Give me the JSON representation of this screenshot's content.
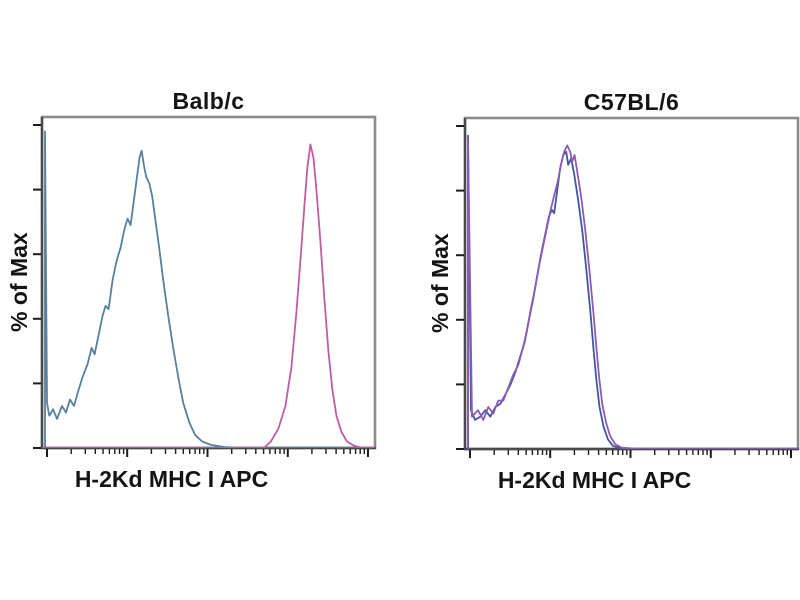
{
  "figure": {
    "background": "#ffffff",
    "frame_color": "#8c8c8c",
    "axis_color": "#4a4a4a",
    "tick_color": "#1c1c1c",
    "text_color": "#141414"
  },
  "chart_data": [
    {
      "type": "line",
      "subtype": "flow-cytometry-histogram-overlay",
      "title": "Balb/c",
      "xlabel": "H-2Kd MHC I APC",
      "ylabel": "% of Max",
      "grid": false,
      "legend": false,
      "x_axis": {
        "scale": "log",
        "decades": 4,
        "decade_fracs": [
          1.5,
          25.6,
          49.7,
          73.8,
          97.9
        ],
        "tick_labels_visible": false,
        "x_units": "fraction-of-axis-0-100"
      },
      "y_axis": {
        "lim": [
          0,
          100
        ],
        "ticks": [
          0,
          20,
          40,
          60,
          80,
          100
        ],
        "tick_labels_visible": false
      },
      "series": [
        {
          "name": "blue-curve",
          "color": "#57809f",
          "points": [
            [
              0.9,
              0
            ],
            [
              0.9,
              98
            ],
            [
              1.5,
              14
            ],
            [
              2.2,
              10
            ],
            [
              3.3,
              12
            ],
            [
              4.5,
              9
            ],
            [
              6.0,
              13
            ],
            [
              7.2,
              11
            ],
            [
              8.4,
              15
            ],
            [
              9.6,
              13
            ],
            [
              10.7,
              17
            ],
            [
              12.2,
              22
            ],
            [
              13.7,
              26
            ],
            [
              14.9,
              31
            ],
            [
              15.8,
              29
            ],
            [
              17.0,
              35
            ],
            [
              18.2,
              41
            ],
            [
              19.1,
              44
            ],
            [
              20.0,
              43
            ],
            [
              21.2,
              52
            ],
            [
              22.4,
              58
            ],
            [
              23.6,
              62
            ],
            [
              24.8,
              68
            ],
            [
              25.7,
              71
            ],
            [
              26.6,
              69
            ],
            [
              27.5,
              76
            ],
            [
              28.4,
              83
            ],
            [
              29.3,
              90
            ],
            [
              29.9,
              92
            ],
            [
              30.7,
              87
            ],
            [
              31.3,
              84
            ],
            [
              32.2,
              82
            ],
            [
              33.1,
              78
            ],
            [
              34.0,
              71
            ],
            [
              35.2,
              62
            ],
            [
              36.4,
              52
            ],
            [
              37.9,
              41
            ],
            [
              39.4,
              31
            ],
            [
              40.9,
              22
            ],
            [
              42.4,
              14
            ],
            [
              44.2,
              8
            ],
            [
              46.0,
              4
            ],
            [
              48.1,
              2
            ],
            [
              50.7,
              1
            ],
            [
              54.6,
              0.3
            ],
            [
              60,
              0
            ],
            [
              100,
              0
            ]
          ]
        },
        {
          "name": "magenta-curve",
          "color": "#c15ba6",
          "points": [
            [
              0,
              0
            ],
            [
              66.6,
              0
            ],
            [
              68.7,
              2
            ],
            [
              71.0,
              6
            ],
            [
              73.1,
              13
            ],
            [
              74.9,
              25
            ],
            [
              76.4,
              42
            ],
            [
              77.6,
              58
            ],
            [
              78.8,
              75
            ],
            [
              79.7,
              87
            ],
            [
              80.6,
              94
            ],
            [
              81.5,
              90
            ],
            [
              82.4,
              80
            ],
            [
              83.6,
              64
            ],
            [
              84.8,
              46
            ],
            [
              86.0,
              30
            ],
            [
              87.2,
              18
            ],
            [
              88.4,
              10
            ],
            [
              89.9,
              5
            ],
            [
              91.6,
              2
            ],
            [
              93.7,
              0.7
            ],
            [
              96.4,
              0
            ],
            [
              100,
              0
            ]
          ]
        }
      ]
    },
    {
      "type": "line",
      "subtype": "flow-cytometry-histogram-overlay",
      "title": "C57BL/6",
      "xlabel": "H-2Kd MHC I APC",
      "ylabel": "% of Max",
      "grid": false,
      "legend": false,
      "x_axis": {
        "scale": "log",
        "decades": 4,
        "decade_fracs": [
          1.5,
          25.6,
          49.7,
          73.8,
          97.9
        ],
        "tick_labels_visible": false,
        "x_units": "fraction-of-axis-0-100"
      },
      "y_axis": {
        "lim": [
          0,
          100
        ],
        "ticks": [
          0,
          20,
          40,
          60,
          80,
          100
        ],
        "tick_labels_visible": false
      },
      "series": [
        {
          "name": "blue-curve",
          "color": "#4056a0",
          "points": [
            [
              0.9,
              0
            ],
            [
              0.9,
              97
            ],
            [
              1.8,
              12
            ],
            [
              3.0,
              9
            ],
            [
              4.6,
              10
            ],
            [
              6.1,
              12
            ],
            [
              7.6,
              10
            ],
            [
              9.1,
              13
            ],
            [
              10.6,
              14
            ],
            [
              12.2,
              17
            ],
            [
              13.7,
              20
            ],
            [
              15.2,
              24
            ],
            [
              16.7,
              29
            ],
            [
              17.9,
              33
            ],
            [
              19.2,
              40
            ],
            [
              20.4,
              46
            ],
            [
              21.6,
              53
            ],
            [
              22.8,
              60
            ],
            [
              24.0,
              66
            ],
            [
              25.2,
              72
            ],
            [
              26.1,
              74
            ],
            [
              26.8,
              73
            ],
            [
              27.7,
              80
            ],
            [
              28.6,
              87
            ],
            [
              29.5,
              91
            ],
            [
              30.4,
              92
            ],
            [
              31.0,
              88
            ],
            [
              31.9,
              90
            ],
            [
              32.8,
              85
            ],
            [
              34.0,
              77
            ],
            [
              35.3,
              67
            ],
            [
              36.5,
              55
            ],
            [
              37.7,
              42
            ],
            [
              38.6,
              31
            ],
            [
              39.5,
              21
            ],
            [
              40.4,
              13
            ],
            [
              41.6,
              7
            ],
            [
              42.9,
              3
            ],
            [
              44.4,
              1
            ],
            [
              46.5,
              0.3
            ],
            [
              52,
              0
            ],
            [
              100,
              0
            ]
          ]
        },
        {
          "name": "purple-curve",
          "color": "#8c5cb4",
          "points": [
            [
              0.9,
              0
            ],
            [
              0.9,
              96
            ],
            [
              2.1,
              10
            ],
            [
              3.9,
              12
            ],
            [
              5.5,
              9
            ],
            [
              7.0,
              13
            ],
            [
              8.5,
              11
            ],
            [
              10.0,
              15
            ],
            [
              11.5,
              15
            ],
            [
              13.0,
              19
            ],
            [
              14.5,
              23
            ],
            [
              16.0,
              26
            ],
            [
              17.3,
              31
            ],
            [
              18.5,
              36
            ],
            [
              19.7,
              43
            ],
            [
              20.9,
              49
            ],
            [
              22.1,
              56
            ],
            [
              23.3,
              62
            ],
            [
              24.5,
              68
            ],
            [
              25.7,
              74
            ],
            [
              26.9,
              79
            ],
            [
              27.9,
              83
            ],
            [
              28.8,
              88
            ],
            [
              29.8,
              92
            ],
            [
              30.7,
              94
            ],
            [
              31.6,
              92
            ],
            [
              32.2,
              89
            ],
            [
              32.9,
              91
            ],
            [
              33.7,
              86
            ],
            [
              34.9,
              78
            ],
            [
              36.1,
              68
            ],
            [
              37.3,
              56
            ],
            [
              38.5,
              43
            ],
            [
              39.4,
              32
            ],
            [
              40.3,
              22
            ],
            [
              41.2,
              14
            ],
            [
              42.4,
              8
            ],
            [
              43.6,
              4
            ],
            [
              45.1,
              1.5
            ],
            [
              47.1,
              0.4
            ],
            [
              53,
              0
            ],
            [
              100,
              0
            ]
          ]
        }
      ]
    }
  ]
}
